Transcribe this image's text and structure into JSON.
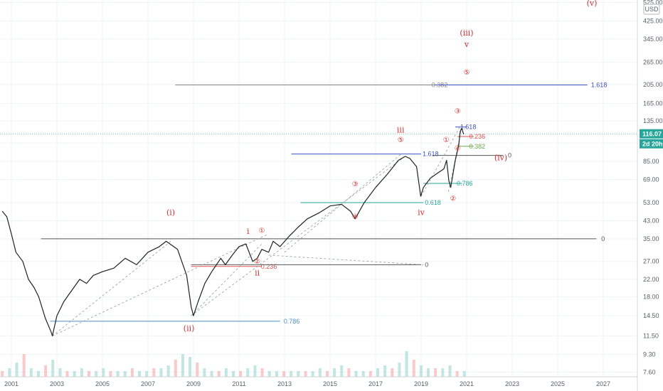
{
  "chart_data": {
    "type": "line",
    "title": "",
    "xlabel": "",
    "ylabel": "",
    "scale": "log",
    "currency": "USD",
    "ylim": [
      7.2,
      540
    ],
    "xlim": [
      2000.5,
      2028.5
    ],
    "y_ticks": [
      "7.60",
      "9.30",
      "11.50",
      "14.50",
      "18.00",
      "22.00",
      "27.00",
      "35.00",
      "43.00",
      "53.00",
      "69.00",
      "85.00",
      "105.00",
      "135.00",
      "165.00",
      "205.00",
      "265.00",
      "345.00",
      "425.00",
      "525.00"
    ],
    "x_ticks": [
      "2001",
      "2003",
      "2005",
      "2007",
      "2009",
      "2011",
      "2013",
      "2015",
      "2017",
      "2019",
      "2021",
      "2023",
      "2025",
      "2027"
    ],
    "last_price": "116.07",
    "countdown": "2d 20h",
    "series": [
      {
        "x": [
          2000.6,
          2000.8,
          2001.0,
          2001.2,
          2001.5,
          2001.75,
          2002.0,
          2002.2,
          2002.5,
          2002.75,
          2002.8,
          2003.0,
          2003.3,
          2003.6,
          2004.0,
          2004.3,
          2004.6,
          2005.0,
          2005.5,
          2006.0,
          2006.5,
          2007.0,
          2007.5,
          2007.8,
          2008.3,
          2008.7,
          2008.9,
          2009.0,
          2009.2,
          2009.5,
          2009.8,
          2010.2,
          2010.4,
          2010.7,
          2011.0,
          2011.3,
          2011.6,
          2011.8,
          2012.0,
          2012.3,
          2012.5,
          2012.8,
          2013.2,
          2013.6,
          2014.0,
          2014.5,
          2015.0,
          2015.5,
          2015.9,
          2016.1,
          2016.5,
          2017.0,
          2017.5,
          2018.0,
          2018.3,
          2018.5,
          2018.8,
          2018.98,
          2019.1,
          2019.4,
          2019.7,
          2020.0,
          2020.12,
          2020.22,
          2020.3,
          2020.5,
          2020.65,
          2020.72,
          2020.78,
          2020.87
        ],
        "values": [
          48,
          45,
          37,
          30,
          27,
          22,
          20,
          18,
          14,
          12,
          11.5,
          14.5,
          17,
          19,
          22,
          21,
          23,
          24,
          25,
          28,
          26,
          30,
          32,
          34,
          31,
          23,
          16,
          14.5,
          17,
          21,
          24,
          28,
          26,
          29,
          32,
          33,
          27,
          28,
          31,
          30,
          34,
          32,
          36,
          40,
          44,
          47,
          51,
          52,
          48,
          44,
          53,
          63,
          73,
          86,
          90,
          88,
          80,
          57,
          63,
          70,
          74,
          78,
          86,
          68,
          63,
          86,
          102,
          120,
          124,
          116.07
        ]
      }
    ],
    "volume": [
      2,
      3,
      5,
      8,
      3,
      2,
      4,
      6,
      3,
      2,
      2,
      3,
      2,
      2,
      3,
      2,
      2,
      2,
      3,
      2,
      2,
      3,
      3,
      4,
      6,
      8,
      7,
      5,
      3,
      2,
      2,
      3,
      2,
      2,
      3,
      4,
      3,
      2,
      2,
      2,
      2,
      2,
      2,
      2,
      3,
      2,
      3,
      4,
      3,
      2,
      2,
      2,
      3,
      4,
      3,
      5,
      9,
      6,
      4,
      3,
      3,
      3,
      4,
      2,
      2
    ],
    "wave_labels": [
      {
        "text": "(i)",
        "x": 2008.0,
        "y": 46
      },
      {
        "text": "(ii)",
        "x": 2008.8,
        "y": 12.2
      },
      {
        "text": "(iii)",
        "x": 2021.0,
        "y": 360
      },
      {
        "text": "v",
        "x": 2021.0,
        "y": 315
      },
      {
        "text": "(iv)",
        "x": 2022.5,
        "y": 86
      },
      {
        "text": "(v)",
        "x": 2026.5,
        "y": 505
      },
      {
        "text": "i",
        "x": 2011.4,
        "y": 37
      },
      {
        "text": "ii",
        "x": 2011.8,
        "y": 23
      },
      {
        "text": "iii",
        "x": 2018.1,
        "y": 118
      },
      {
        "text": "iv",
        "x": 2019.0,
        "y": 46
      }
    ],
    "circled_labels": [
      {
        "text": "①",
        "x": 2012.0,
        "y": 37.5
      },
      {
        "text": "②",
        "x": 2011.8,
        "y": 26.3
      },
      {
        "text": "③",
        "x": 2016.1,
        "y": 64
      },
      {
        "text": "④",
        "x": 2016.1,
        "y": 44
      },
      {
        "text": "⑤",
        "x": 2018.1,
        "y": 106
      },
      {
        "text": "①",
        "x": 2020.1,
        "y": 106
      },
      {
        "text": "②",
        "x": 2020.4,
        "y": 54
      },
      {
        "text": "③",
        "x": 2020.6,
        "y": 147
      },
      {
        "text": "④",
        "x": 2020.6,
        "y": 96
      },
      {
        "text": "⑤",
        "x": 2021.0,
        "y": 230
      }
    ],
    "fib_levels": [
      {
        "label": "0.786",
        "y": 13.6,
        "x1": 2002.7,
        "x2": 2012.8,
        "label_x": 2012.9,
        "color": "#4a90c8"
      },
      {
        "label": "0.236",
        "y": 25.5,
        "x1": 2008.9,
        "x2": 2012.0,
        "label_x": 2011.9,
        "color": "#e05050"
      },
      {
        "label": "0.618",
        "y": 53,
        "x1": 2013.7,
        "x2": 2019.1,
        "label_x": 2019.1,
        "color": "#26a69a"
      },
      {
        "label": "1.618",
        "y": 92.5,
        "x1": 2013.3,
        "x2": 2019.0,
        "label_x": 2019.0,
        "color": "#3f4fbf"
      },
      {
        "label": "0.786",
        "y": 66,
        "x1": 2019.1,
        "x2": 2020.8,
        "label_x": 2020.5,
        "color": "#26a69a"
      },
      {
        "label": "1.618",
        "y": 126,
        "x1": 2020.5,
        "x2": 2021.0,
        "label_x": 2020.65,
        "color": "#3f4fbf"
      },
      {
        "label": "0.236",
        "y": 113,
        "x1": 2020.6,
        "x2": 2021.3,
        "label_x": 2021.05,
        "color": "#e05050"
      },
      {
        "label": "0.382",
        "y": 101,
        "x1": 2020.6,
        "x2": 2021.3,
        "label_x": 2021.05,
        "color": "#6aa84f"
      },
      {
        "label": "0",
        "y": 91,
        "x1": 2019.5,
        "x2": 2022.6,
        "label_x": 2022.75,
        "color": "#555555"
      },
      {
        "label": "0",
        "y": 35,
        "x1": 2002.3,
        "x2": 2026.7,
        "label_x": 2026.85,
        "color": "#555555"
      },
      {
        "label": "0",
        "y": 26,
        "x1": 2008.9,
        "x2": 2019.0,
        "label_x": 2019.1,
        "color": "#555555"
      },
      {
        "label": "0.382",
        "y": 204,
        "x1": 2008.2,
        "x2": 2026.3,
        "label_x": 2019.4,
        "color": "#888888"
      },
      {
        "label": "1.618",
        "y": 204,
        "x1": 2019.6,
        "x2": 2026.3,
        "label_x": 2026.4,
        "color": "#3f4fbf"
      }
    ]
  }
}
